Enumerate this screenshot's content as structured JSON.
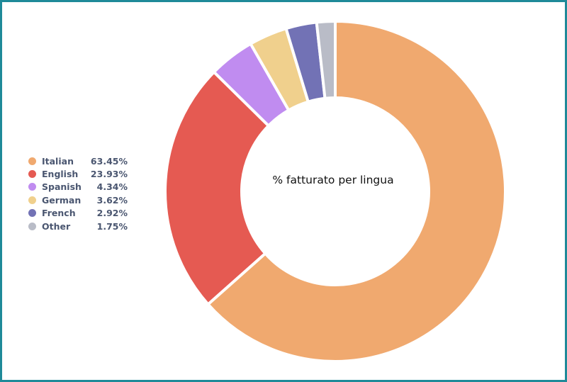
{
  "chart_data": {
    "type": "pie",
    "donut": true,
    "center_label": "% fatturato per lingua",
    "categories": [
      "Italian",
      "English",
      "Spanish",
      "German",
      "French",
      "Other"
    ],
    "values": [
      63.45,
      23.93,
      4.34,
      3.62,
      2.92,
      1.75
    ],
    "value_labels": [
      "63.45%",
      "23.93%",
      "4.34%",
      "3.62%",
      "2.92%",
      "1.75%"
    ],
    "colors": [
      "#f0a96f",
      "#e55a52",
      "#c08cf0",
      "#f0d08d",
      "#7272b5",
      "#b9bcc7"
    ],
    "legend_position": "left"
  }
}
